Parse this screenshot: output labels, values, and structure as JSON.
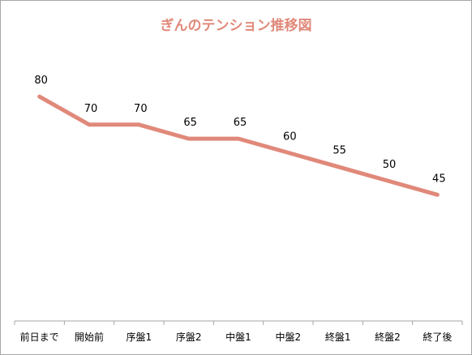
{
  "chart_data": {
    "type": "line",
    "title": "ぎんのテンション推移図",
    "categories": [
      "前日まで",
      "開始前",
      "序盤1",
      "序盤2",
      "中盤1",
      "中盤2",
      "終盤1",
      "終盤2",
      "終了後"
    ],
    "series": [
      {
        "values": [
          80,
          70,
          70,
          65,
          65,
          60,
          55,
          50,
          45
        ]
      }
    ],
    "xlabel": "",
    "ylabel": "",
    "ylim": [
      0,
      100
    ],
    "y_axis_visible": false,
    "grid": false,
    "legend": "none",
    "data_labels": true,
    "colors": {
      "line": "#E0897A",
      "title": "#E0897A",
      "axis": "#a6a6a6"
    }
  }
}
